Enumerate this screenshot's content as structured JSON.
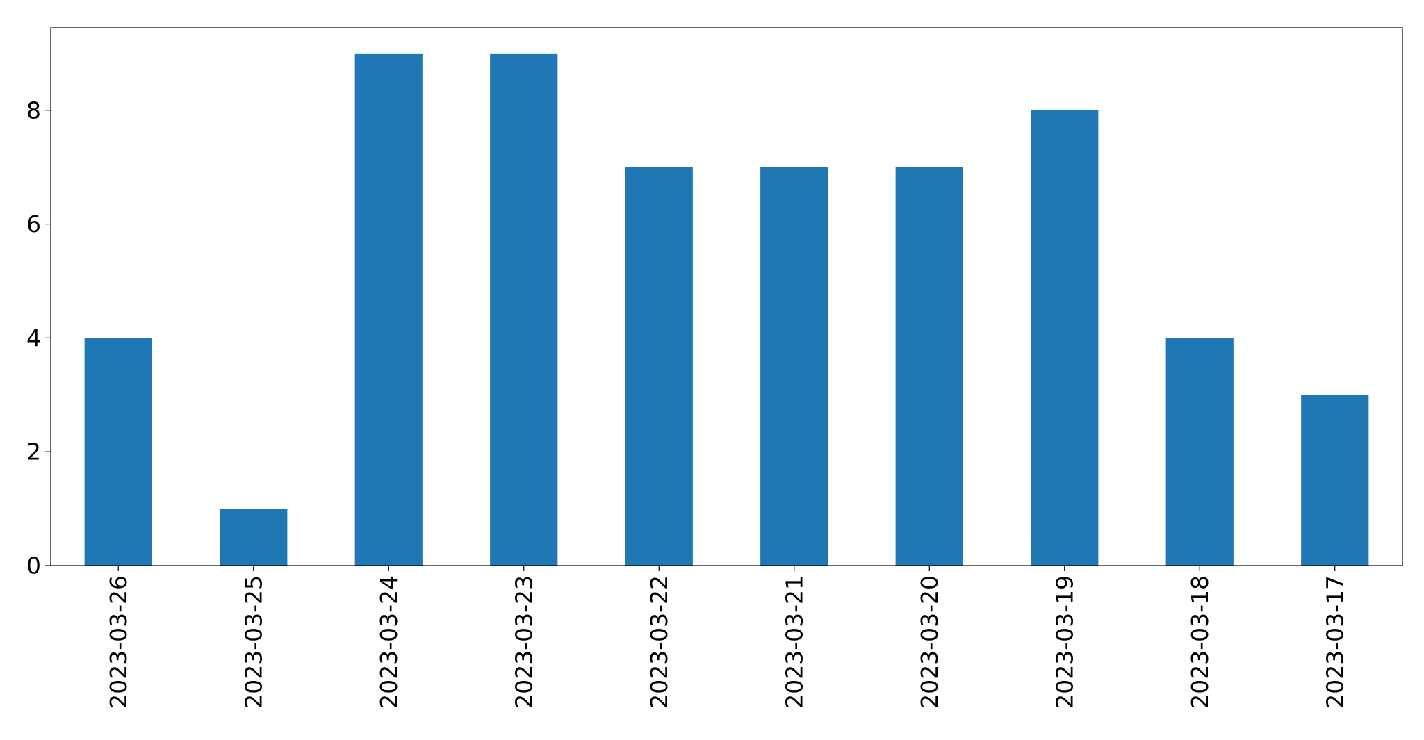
{
  "chart_data": {
    "type": "bar",
    "title": "",
    "xlabel": "",
    "ylabel": "",
    "categories": [
      "2023-03-26",
      "2023-03-25",
      "2023-03-24",
      "2023-03-23",
      "2023-03-22",
      "2023-03-21",
      "2023-03-20",
      "2023-03-19",
      "2023-03-18",
      "2023-03-17"
    ],
    "values": [
      4,
      1,
      9,
      9,
      7,
      7,
      7,
      8,
      4,
      3
    ],
    "ylim": [
      0,
      9.45
    ],
    "yticks": [
      0,
      2,
      4,
      6,
      8
    ],
    "x_tick_rotation": "vertical",
    "grid": false,
    "legend": "none",
    "bar_color": "#1f77b4"
  }
}
